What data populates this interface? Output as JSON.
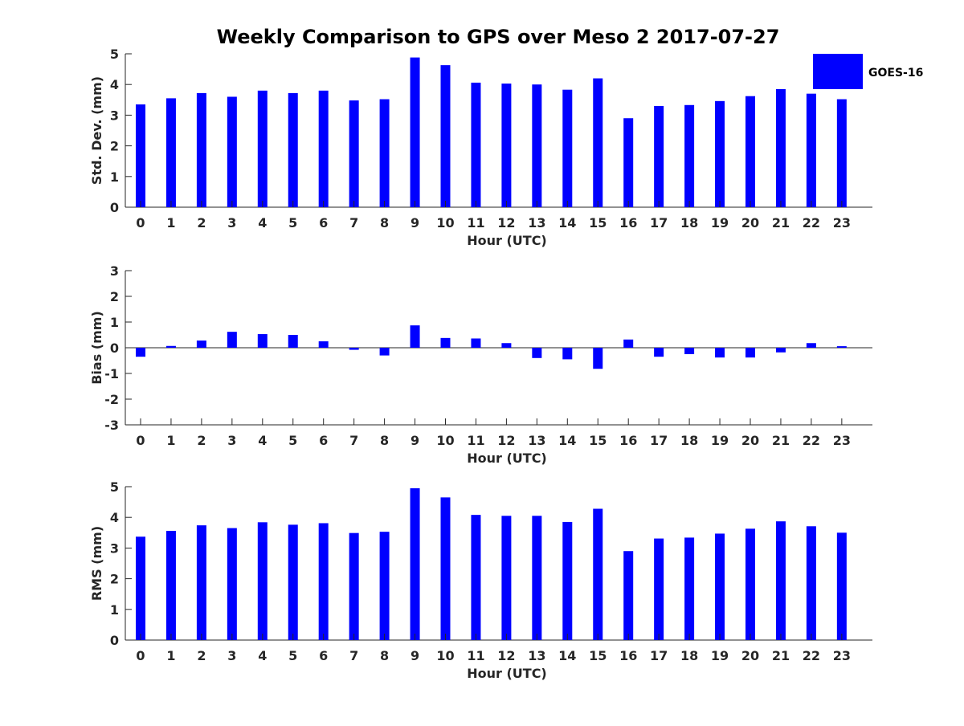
{
  "title": "Weekly Comparison to GPS over Meso 2 2017-07-27",
  "legend": {
    "label": "GOES-16",
    "color": "#0000ff"
  },
  "chart_data": [
    {
      "type": "bar",
      "title": "Weekly Comparison to GPS over Meso 2 2017-07-27",
      "xlabel": "Hour (UTC)",
      "ylabel": "Std. Dev. (mm)",
      "ylim": [
        0,
        5
      ],
      "yticks": [
        0,
        1,
        2,
        3,
        4,
        5
      ],
      "categories": [
        "0",
        "1",
        "2",
        "3",
        "4",
        "5",
        "6",
        "7",
        "8",
        "9",
        "10",
        "11",
        "12",
        "13",
        "14",
        "15",
        "16",
        "17",
        "18",
        "19",
        "20",
        "21",
        "22",
        "23"
      ],
      "series": [
        {
          "name": "GOES-16",
          "values": [
            3.35,
            3.55,
            3.72,
            3.6,
            3.8,
            3.72,
            3.8,
            3.48,
            3.52,
            4.88,
            4.63,
            4.06,
            4.03,
            4.0,
            3.83,
            4.2,
            2.9,
            3.3,
            3.33,
            3.46,
            3.62,
            3.85,
            3.7,
            3.52
          ]
        }
      ],
      "legend_position": "top-right"
    },
    {
      "type": "bar",
      "xlabel": "Hour (UTC)",
      "ylabel": "Bias (mm)",
      "ylim": [
        -3,
        3
      ],
      "yticks": [
        -3,
        -2,
        -1,
        0,
        1,
        2,
        3
      ],
      "categories": [
        "0",
        "1",
        "2",
        "3",
        "4",
        "5",
        "6",
        "7",
        "8",
        "9",
        "10",
        "11",
        "12",
        "13",
        "14",
        "15",
        "16",
        "17",
        "18",
        "19",
        "20",
        "21",
        "22",
        "23"
      ],
      "series": [
        {
          "name": "GOES-16",
          "values": [
            -0.35,
            0.07,
            0.28,
            0.62,
            0.53,
            0.5,
            0.25,
            -0.08,
            -0.3,
            0.87,
            0.38,
            0.36,
            0.18,
            -0.4,
            -0.45,
            -0.82,
            0.32,
            -0.35,
            -0.25,
            -0.38,
            -0.38,
            -0.18,
            0.18,
            0.06
          ]
        }
      ]
    },
    {
      "type": "bar",
      "xlabel": "Hour (UTC)",
      "ylabel": "RMS (mm)",
      "ylim": [
        0,
        5
      ],
      "yticks": [
        0,
        1,
        2,
        3,
        4,
        5
      ],
      "categories": [
        "0",
        "1",
        "2",
        "3",
        "4",
        "5",
        "6",
        "7",
        "8",
        "9",
        "10",
        "11",
        "12",
        "13",
        "14",
        "15",
        "16",
        "17",
        "18",
        "19",
        "20",
        "21",
        "22",
        "23"
      ],
      "series": [
        {
          "name": "GOES-16",
          "values": [
            3.37,
            3.56,
            3.74,
            3.65,
            3.84,
            3.76,
            3.81,
            3.49,
            3.53,
            4.95,
            4.65,
            4.08,
            4.05,
            4.05,
            3.85,
            4.28,
            2.9,
            3.31,
            3.34,
            3.47,
            3.63,
            3.87,
            3.71,
            3.5
          ]
        }
      ]
    }
  ]
}
